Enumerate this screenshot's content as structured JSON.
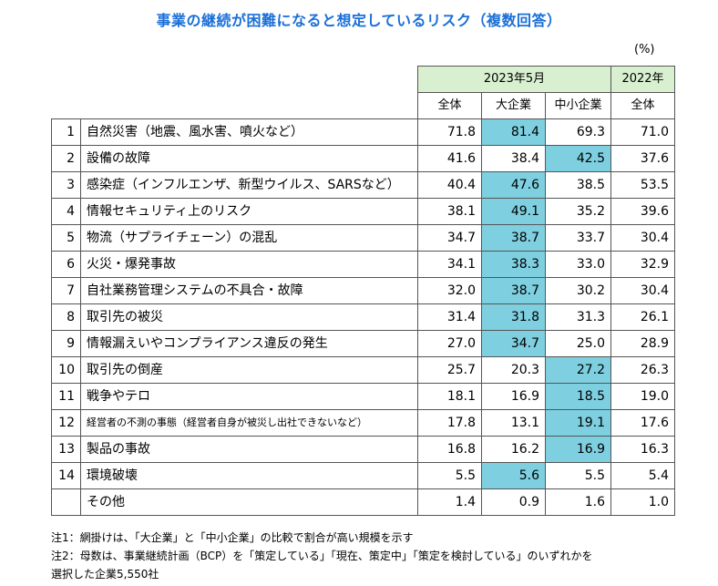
{
  "title": "事業の継続が困難になると想定しているリスク（複数回答）",
  "unit": "(%)",
  "header": {
    "year_2023": "2023年5月",
    "year_2022": "2022年",
    "cols": [
      "全体",
      "大企業",
      "中小企業",
      "全体"
    ]
  },
  "highlight_color": "#7ecfe0",
  "header_color": "#d8f0cf",
  "rows": [
    {
      "no": "1",
      "label": "自然災害（地震、風水害、噴火など）",
      "v": [
        "71.8",
        "81.4",
        "69.3",
        "71.0"
      ],
      "hl": 1
    },
    {
      "no": "2",
      "label": "設備の故障",
      "v": [
        "41.6",
        "38.4",
        "42.5",
        "37.6"
      ],
      "hl": 2
    },
    {
      "no": "3",
      "label": "感染症（インフルエンザ、新型ウイルス、SARSなど）",
      "v": [
        "40.4",
        "47.6",
        "38.5",
        "53.5"
      ],
      "hl": 1
    },
    {
      "no": "4",
      "label": "情報セキュリティ上のリスク",
      "v": [
        "38.1",
        "49.1",
        "35.2",
        "39.6"
      ],
      "hl": 1
    },
    {
      "no": "5",
      "label": "物流（サプライチェーン）の混乱",
      "v": [
        "34.7",
        "38.7",
        "33.7",
        "30.4"
      ],
      "hl": 1
    },
    {
      "no": "6",
      "label": "火災・爆発事故",
      "v": [
        "34.1",
        "38.3",
        "33.0",
        "32.9"
      ],
      "hl": 1
    },
    {
      "no": "7",
      "label": "自社業務管理システムの不具合・故障",
      "v": [
        "32.0",
        "38.7",
        "30.2",
        "30.4"
      ],
      "hl": 1
    },
    {
      "no": "8",
      "label": "取引先の被災",
      "v": [
        "31.4",
        "31.8",
        "31.3",
        "26.1"
      ],
      "hl": 1
    },
    {
      "no": "9",
      "label": "情報漏えいやコンプライアンス違反の発生",
      "v": [
        "27.0",
        "34.7",
        "25.0",
        "28.9"
      ],
      "hl": 1
    },
    {
      "no": "10",
      "label": "取引先の倒産",
      "v": [
        "25.7",
        "20.3",
        "27.2",
        "26.3"
      ],
      "hl": 2
    },
    {
      "no": "11",
      "label": "戦争やテロ",
      "v": [
        "18.1",
        "16.9",
        "18.5",
        "19.0"
      ],
      "hl": 2
    },
    {
      "no": "12",
      "label": "経営者の不測の事態（経営者自身が被災し出社できないなど）",
      "v": [
        "17.8",
        "13.1",
        "19.1",
        "17.6"
      ],
      "hl": 2,
      "small": true
    },
    {
      "no": "13",
      "label": "製品の事故",
      "v": [
        "16.8",
        "16.2",
        "16.9",
        "16.3"
      ],
      "hl": 2
    },
    {
      "no": "14",
      "label": "環境破壊",
      "v": [
        "5.5",
        "5.6",
        "5.5",
        "5.4"
      ],
      "hl": 1
    },
    {
      "no": "",
      "label": "その他",
      "v": [
        "1.4",
        "0.9",
        "1.6",
        "1.0"
      ],
      "hl": 0
    }
  ],
  "notes": [
    "注1：網掛けは、「大企業」と「中小企業」の比較で割合が高い規模を示す",
    "注2：母数は、事業継続計画（BCP）を「策定している」「現在、策定中」「策定を検討している」のいずれかを",
    "選択した企業5,550社"
  ]
}
